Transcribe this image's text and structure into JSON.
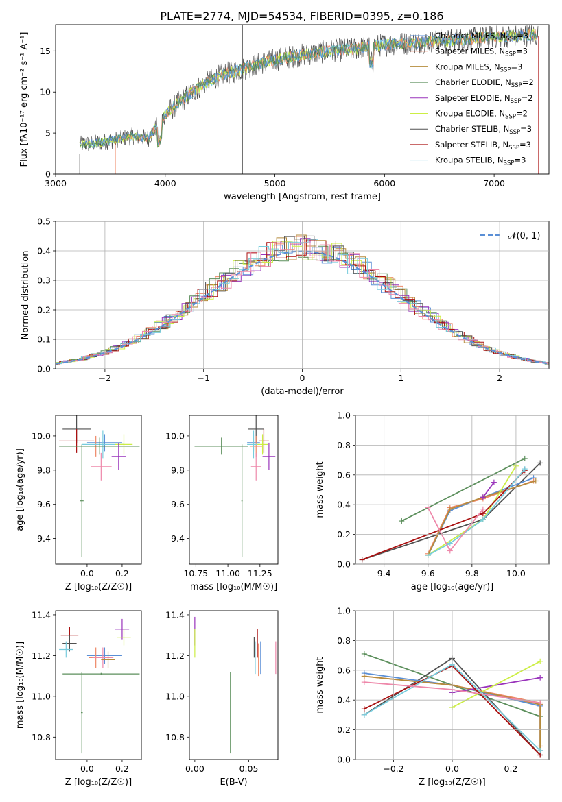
{
  "title": "PLATE=2774, MJD=54534, FIBERID=0395, z=0.186",
  "colors": {
    "chabrier_miles": "#5a8fd6",
    "salpeter_miles": "#ee8866",
    "kroupa_miles": "#b58b3c",
    "chabrier_elodie": "#5c8f5c",
    "salpeter_elodie": "#9933bb",
    "kroupa_elodie": "#ccee44",
    "chabrier_stelib": "#505050",
    "salpeter_stelib": "#aa1111",
    "kroupa_stelib": "#77ccdd",
    "extra_pink": "#ee88aa",
    "grid": "#b0b0b0"
  },
  "chart_data": [
    {
      "id": "spectrum",
      "type": "line",
      "xlabel": "wavelength [Angstrom, rest frame]",
      "ylabel": "Flux [fλ10⁻¹⁷ erg cm⁻² s⁻¹ A⁻¹]",
      "xlim": [
        3000,
        7500
      ],
      "ylim": [
        0,
        18.2
      ],
      "xticks": [
        3000,
        4000,
        5000,
        6000,
        7000
      ],
      "yticks": [
        0,
        5,
        10,
        15
      ],
      "grid": false,
      "legend_position": "upper-right",
      "legend": [
        {
          "key": "chabrier_miles",
          "label": "Chabrier MILES, N",
          "sub": "SSP",
          "tail": "=3"
        },
        {
          "key": "salpeter_miles",
          "label": "Salpeter MILES, N",
          "sub": "SSP",
          "tail": "=3"
        },
        {
          "key": "kroupa_miles",
          "label": "Kroupa MILES, N",
          "sub": "SSP",
          "tail": "=3"
        },
        {
          "key": "chabrier_elodie",
          "label": "Chabrier ELODIE, N",
          "sub": "SSP",
          "tail": "=2"
        },
        {
          "key": "salpeter_elodie",
          "label": "Salpeter ELODIE, N",
          "sub": "SSP",
          "tail": "=2"
        },
        {
          "key": "kroupa_elodie",
          "label": "Kroupa ELODIE, N",
          "sub": "SSP",
          "tail": "=2"
        },
        {
          "key": "chabrier_stelib",
          "label": "Chabrier STELIB, N",
          "sub": "SSP",
          "tail": "=3"
        },
        {
          "key": "salpeter_stelib",
          "label": "Salpeter STELIB, N",
          "sub": "SSP",
          "tail": "=3"
        },
        {
          "key": "kroupa_stelib",
          "label": "Kroupa STELIB, N",
          "sub": "SSP",
          "tail": "=3"
        }
      ],
      "continuum": [
        [
          3220,
          3.6
        ],
        [
          3400,
          3.8
        ],
        [
          3550,
          4.2
        ],
        [
          3700,
          4.6
        ],
        [
          3850,
          4.4
        ],
        [
          3950,
          6.5
        ],
        [
          4100,
          8.5
        ],
        [
          4300,
          10.5
        ],
        [
          4500,
          12.0
        ],
        [
          4700,
          12.8
        ],
        [
          4900,
          13.6
        ],
        [
          5100,
          14.2
        ],
        [
          5300,
          14.6
        ],
        [
          5500,
          15.0
        ],
        [
          5700,
          15.2
        ],
        [
          5900,
          15.6
        ],
        [
          6100,
          15.9
        ],
        [
          6300,
          16.0
        ],
        [
          6500,
          16.2
        ],
        [
          6700,
          16.4
        ],
        [
          6900,
          16.6
        ],
        [
          7100,
          16.8
        ],
        [
          7300,
          16.9
        ],
        [
          7400,
          17.0
        ]
      ],
      "spikes": [
        [
          3210,
          0
        ],
        [
          3220,
          2.5
        ],
        [
          4705,
          0
        ],
        [
          4707,
          18
        ],
        [
          6790,
          0
        ],
        [
          7405,
          0
        ]
      ]
    },
    {
      "id": "residuals",
      "type": "histogram",
      "xlabel": "(data-model)/error",
      "ylabel": "Normed distribution",
      "xlim": [
        -2.5,
        2.5
      ],
      "ylim": [
        0,
        0.5
      ],
      "xticks": [
        -2,
        -1,
        0,
        1,
        2
      ],
      "xticklabels": [
        "−2",
        "−1",
        "0",
        "1",
        "2"
      ],
      "yticks": [
        0,
        0.1,
        0.2,
        0.3,
        0.4,
        0.5
      ],
      "yticklabels": [
        "0.0",
        "0.1",
        "0.2",
        "0.3",
        "0.4",
        "0.5"
      ],
      "grid": true,
      "legend_position": "upper-right",
      "gauss_label": "𝒩(0, 1)",
      "gauss_color": "#5a8fd6"
    },
    {
      "id": "age_vs_Z",
      "type": "scatter",
      "xlabel": "Z [log₁₀(Z/Z☉)]",
      "ylabel": "age  [log₁₀(age/yr)]",
      "xlim": [
        -0.18,
        0.31
      ],
      "ylim": [
        9.25,
        10.12
      ],
      "xticks": [
        0.0,
        0.2
      ],
      "xticklabels": [
        "0.0",
        "0.2"
      ],
      "yticks": [
        9.4,
        9.6,
        9.8,
        10.0
      ],
      "yticklabels": [
        "9.4",
        "9.6",
        "9.8",
        "10.0"
      ],
      "points": [
        {
          "c": "chabrier_stelib",
          "x": -0.06,
          "xe": 0.08,
          "y": 10.04,
          "ye": 0.08
        },
        {
          "c": "salpeter_stelib",
          "x": -0.06,
          "xe": 0.1,
          "y": 9.97,
          "ye": 0.07
        },
        {
          "c": "chabrier_miles",
          "x": 0.1,
          "xe": 0.1,
          "y": 9.96,
          "ye": 0.05
        },
        {
          "c": "salpeter_miles",
          "x": 0.05,
          "xe": 0.06,
          "y": 9.94,
          "ye": 0.06
        },
        {
          "c": "kroupa_stelib",
          "x": 0.09,
          "xe": 0.12,
          "y": 9.95,
          "ye": 0.08
        },
        {
          "c": "chabrier_elodie",
          "x": 0.07,
          "xe": 0.23,
          "y": 9.94,
          "ye": 0.05
        },
        {
          "c": "kroupa_elodie",
          "x": 0.21,
          "xe": 0.05,
          "y": 9.95,
          "ye": 0.06
        },
        {
          "c": "extra_pink",
          "x": 0.08,
          "xe": 0.06,
          "y": 9.82,
          "ye": 0.08
        },
        {
          "c": "salpeter_elodie",
          "x": 0.18,
          "xe": 0.04,
          "y": 9.88,
          "ye": 0.08
        },
        {
          "c": "chabrier_elodie",
          "x": -0.03,
          "xe": 0.01,
          "y": 9.62,
          "ye": 0.33
        }
      ]
    },
    {
      "id": "age_vs_mass",
      "type": "scatter",
      "xlabel": "mass [log₁₀(M/M☉)]",
      "ylabel": "",
      "xlim": [
        10.7,
        11.39
      ],
      "ylim": [
        9.25,
        10.12
      ],
      "xticks": [
        10.75,
        11.0,
        11.25
      ],
      "xticklabels": [
        "10.75",
        "11.00",
        "11.25"
      ],
      "yticks": [
        9.4,
        9.6,
        9.8,
        10.0
      ],
      "yticklabels": [
        "9.4",
        "9.6",
        "9.8",
        "10.0"
      ],
      "points": [
        {
          "c": "chabrier_stelib",
          "x": 11.22,
          "xe": 0.06,
          "y": 10.04,
          "ye": 0.08
        },
        {
          "c": "salpeter_stelib",
          "x": 11.28,
          "xe": 0.04,
          "y": 9.97,
          "ye": 0.07
        },
        {
          "c": "chabrier_miles",
          "x": 11.2,
          "xe": 0.05,
          "y": 9.96,
          "ye": 0.05
        },
        {
          "c": "salpeter_miles",
          "x": 11.22,
          "xe": 0.05,
          "y": 9.94,
          "ye": 0.06
        },
        {
          "c": "kroupa_stelib",
          "x": 11.2,
          "xe": 0.05,
          "y": 9.95,
          "ye": 0.08
        },
        {
          "c": "chabrier_elodie",
          "x": 10.95,
          "xe": 0.21,
          "y": 9.94,
          "ye": 0.05
        },
        {
          "c": "kroupa_elodie",
          "x": 11.27,
          "xe": 0.04,
          "y": 9.95,
          "ye": 0.06
        },
        {
          "c": "extra_pink",
          "x": 11.22,
          "xe": 0.04,
          "y": 9.82,
          "ye": 0.08
        },
        {
          "c": "salpeter_elodie",
          "x": 11.32,
          "xe": 0.05,
          "y": 9.88,
          "ye": 0.08
        },
        {
          "c": "chabrier_elodie",
          "x": 11.11,
          "xe": 0.005,
          "y": 9.62,
          "ye": 0.33
        }
      ]
    },
    {
      "id": "massweight_vs_age",
      "type": "line",
      "xlabel": "age  [log₁₀(age/yr)]",
      "ylabel": "mass weight",
      "xlim": [
        9.27,
        10.15
      ],
      "ylim": [
        0,
        1
      ],
      "xticks": [
        9.4,
        9.6,
        9.8,
        10.0
      ],
      "xticklabels": [
        "9.4",
        "9.6",
        "9.8",
        "10.0"
      ],
      "yticks": [
        0,
        0.2,
        0.4,
        0.6,
        0.8,
        1.0
      ],
      "yticklabels": [
        "0.0",
        "0.2",
        "0.4",
        "0.6",
        "0.8",
        "1.0"
      ],
      "grid": true,
      "series": [
        {
          "c": "chabrier_elodie",
          "x": [
            9.48,
            10.04
          ],
          "y": [
            0.29,
            0.71
          ]
        },
        {
          "c": "chabrier_stelib",
          "x": [
            9.3,
            9.85,
            10.11
          ],
          "y": [
            0.03,
            0.3,
            0.68
          ]
        },
        {
          "c": "chabrier_miles",
          "x": [
            9.6,
            9.7,
            9.85,
            10.08
          ],
          "y": [
            0.06,
            0.36,
            0.45,
            0.58
          ]
        },
        {
          "c": "salpeter_miles",
          "x": [
            9.6,
            9.7,
            9.85,
            10.08
          ],
          "y": [
            0.07,
            0.38,
            0.44,
            0.56
          ]
        },
        {
          "c": "kroupa_miles",
          "x": [
            9.6,
            9.7,
            9.85,
            10.09
          ],
          "y": [
            0.06,
            0.37,
            0.45,
            0.56
          ]
        },
        {
          "c": "salpeter_elodie",
          "x": [
            9.85,
            9.9
          ],
          "y": [
            0.45,
            0.55
          ]
        },
        {
          "c": "kroupa_elodie",
          "x": [
            9.6,
            9.85,
            10.0
          ],
          "y": [
            0.06,
            0.3,
            0.66
          ]
        },
        {
          "c": "salpeter_stelib",
          "x": [
            9.3,
            9.85,
            10.04
          ],
          "y": [
            0.03,
            0.34,
            0.63
          ]
        },
        {
          "c": "kroupa_stelib",
          "x": [
            9.6,
            9.7,
            9.85,
            10.04
          ],
          "y": [
            0.06,
            0.14,
            0.3,
            0.64
          ]
        },
        {
          "c": "extra_pink",
          "x": [
            9.6,
            9.7,
            9.85
          ],
          "y": [
            0.38,
            0.09,
            0.37
          ]
        }
      ]
    },
    {
      "id": "mass_vs_Z",
      "type": "scatter",
      "xlabel": "Z [log₁₀(Z/Z☉)]",
      "ylabel": "mass [log₁₀(M/M☉)]",
      "xlim": [
        -0.18,
        0.31
      ],
      "ylim": [
        10.69,
        11.42
      ],
      "xticks": [
        0.0,
        0.2
      ],
      "xticklabels": [
        "0.0",
        "0.2"
      ],
      "yticks": [
        10.8,
        11.0,
        11.2,
        11.4
      ],
      "yticklabels": [
        "10.8",
        "11.0",
        "11.2",
        "11.4"
      ],
      "points": [
        {
          "c": "salpeter_stelib",
          "x": -0.1,
          "xe": 0.05,
          "y": 11.3,
          "ye": 0.04
        },
        {
          "c": "chabrier_stelib",
          "x": -0.1,
          "xe": 0.04,
          "y": 11.26,
          "ye": 0.04
        },
        {
          "c": "salpeter_elodie",
          "x": 0.2,
          "xe": 0.04,
          "y": 11.33,
          "ye": 0.05
        },
        {
          "c": "kroupa_elodie",
          "x": 0.21,
          "xe": 0.04,
          "y": 11.29,
          "ye": 0.04
        },
        {
          "c": "kroupa_stelib",
          "x": -0.12,
          "xe": 0.04,
          "y": 11.23,
          "ye": 0.04
        },
        {
          "c": "chabrier_miles",
          "x": 0.1,
          "xe": 0.1,
          "y": 11.2,
          "ye": 0.04
        },
        {
          "c": "salpeter_miles",
          "x": 0.05,
          "xe": 0.04,
          "y": 11.19,
          "ye": 0.05
        },
        {
          "c": "extra_pink",
          "x": 0.09,
          "xe": 0.06,
          "y": 11.19,
          "ye": 0.05
        },
        {
          "c": "kroupa_miles",
          "x": 0.12,
          "xe": 0.04,
          "y": 11.18,
          "ye": 0.04
        },
        {
          "c": "chabrier_elodie",
          "x": 0.08,
          "xe": 0.22,
          "y": 11.11,
          "ye": 0.005
        },
        {
          "c": "chabrier_elodie",
          "x": -0.03,
          "xe": 0.005,
          "y": 10.92,
          "ye": 0.2
        }
      ]
    },
    {
      "id": "mass_vs_ebv",
      "type": "scatter",
      "xlabel": "E(B-V)",
      "ylabel": "",
      "xlim": [
        -0.005,
        0.077
      ],
      "ylim": [
        10.69,
        11.42
      ],
      "xticks": [
        0.0,
        0.05
      ],
      "xticklabels": [
        "0.00",
        "0.05"
      ],
      "yticks": [
        10.8,
        11.0,
        11.2,
        11.4
      ],
      "yticklabels": [
        "10.8",
        "11.0",
        "11.2",
        "11.4"
      ],
      "points": [
        {
          "c": "salpeter_elodie",
          "x": 0.0,
          "xe": 0.0,
          "y": 11.32,
          "ye": 0.07
        },
        {
          "c": "kroupa_elodie",
          "x": 0.0,
          "xe": 0.0,
          "y": 11.26,
          "ye": 0.07
        },
        {
          "c": "chabrier_elodie",
          "x": 0.033,
          "xe": 0.0,
          "y": 10.92,
          "ye": 0.2
        },
        {
          "c": "chabrier_stelib",
          "x": 0.055,
          "xe": 0.0,
          "y": 11.24,
          "ye": 0.05
        },
        {
          "c": "kroupa_stelib",
          "x": 0.056,
          "xe": 0.0,
          "y": 11.19,
          "ye": 0.08
        },
        {
          "c": "salpeter_stelib",
          "x": 0.058,
          "xe": 0.0,
          "y": 11.26,
          "ye": 0.07
        },
        {
          "c": "salpeter_miles",
          "x": 0.059,
          "xe": 0.0,
          "y": 11.18,
          "ye": 0.08
        },
        {
          "c": "chabrier_miles",
          "x": 0.061,
          "xe": 0.0,
          "y": 11.19,
          "ye": 0.08
        },
        {
          "c": "extra_pink",
          "x": 0.075,
          "xe": 0.0,
          "y": 11.19,
          "ye": 0.08
        }
      ]
    },
    {
      "id": "massweight_vs_Z",
      "type": "line",
      "xlabel": "Z [log₁₀(Z/Z☉)]",
      "ylabel": "mass weight",
      "xlim": [
        -0.33,
        0.33
      ],
      "ylim": [
        0,
        1
      ],
      "xticks": [
        -0.2,
        0.0,
        0.2
      ],
      "xticklabels": [
        "−0.2",
        "0.0",
        "0.2"
      ],
      "yticks": [
        0,
        0.2,
        0.4,
        0.6,
        0.8,
        1.0
      ],
      "yticklabels": [
        "0.0",
        "0.2",
        "0.4",
        "0.6",
        "0.8",
        "1.0"
      ],
      "grid": true,
      "series": [
        {
          "c": "chabrier_elodie",
          "x": [
            -0.3,
            0.3
          ],
          "y": [
            0.71,
            0.29
          ]
        },
        {
          "c": "chabrier_stelib",
          "x": [
            -0.3,
            0.0,
            0.3
          ],
          "y": [
            0.3,
            0.68,
            0.03
          ]
        },
        {
          "c": "chabrier_miles",
          "x": [
            -0.3,
            0.0,
            0.3,
            0.3
          ],
          "y": [
            0.58,
            0.5,
            0.36,
            0.06
          ]
        },
        {
          "c": "salpeter_miles",
          "x": [
            -0.3,
            0.0,
            0.3,
            0.3
          ],
          "y": [
            0.56,
            0.5,
            0.38,
            0.09
          ]
        },
        {
          "c": "kroupa_miles",
          "x": [
            -0.3,
            0.0,
            0.3,
            0.3
          ],
          "y": [
            0.56,
            0.5,
            0.37,
            0.06
          ]
        },
        {
          "c": "salpeter_elodie",
          "x": [
            0.0,
            0.3
          ],
          "y": [
            0.45,
            0.55
          ]
        },
        {
          "c": "kroupa_elodie",
          "x": [
            0.0,
            0.3
          ],
          "y": [
            0.35,
            0.66
          ]
        },
        {
          "c": "salpeter_stelib",
          "x": [
            -0.3,
            0.0,
            0.3
          ],
          "y": [
            0.34,
            0.63,
            0.03
          ]
        },
        {
          "c": "kroupa_stelib",
          "x": [
            -0.3,
            0.0,
            0.3
          ],
          "y": [
            0.3,
            0.64,
            0.06
          ]
        },
        {
          "c": "extra_pink",
          "x": [
            -0.3,
            0.0,
            0.3
          ],
          "y": [
            0.52,
            0.47,
            0.38
          ]
        }
      ]
    }
  ]
}
